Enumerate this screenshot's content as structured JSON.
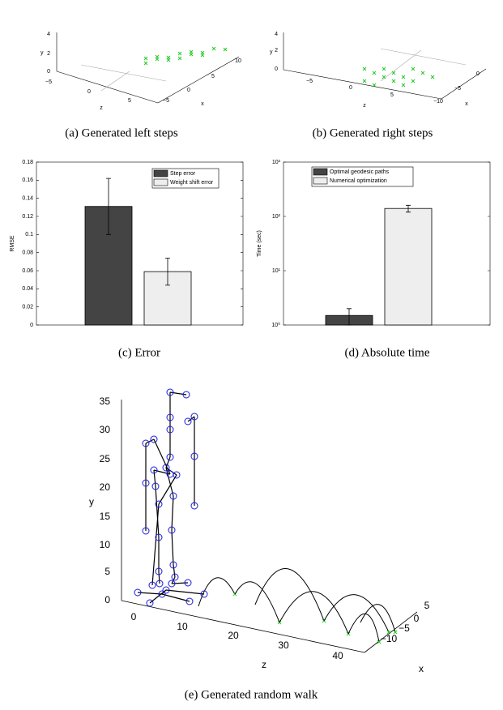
{
  "figures_3d": [
    {
      "caption": "(a) Generated left steps",
      "y_label": "y",
      "z_label": "z",
      "x_label": "x",
      "yticks": [
        "4",
        "2",
        "0"
      ],
      "zticks": [
        "−5",
        "0",
        "5"
      ],
      "xticks": [
        "10",
        "5",
        "0",
        "−5"
      ]
    },
    {
      "caption": "(b) Generated right steps",
      "y_label": "y",
      "z_label": "z",
      "x_label": "x",
      "yticks": [
        "4",
        "2",
        "0"
      ],
      "zticks": [
        "−5",
        "0",
        "5"
      ],
      "xticks": [
        "0",
        "−5",
        "−10"
      ]
    },
    {
      "caption": "(e) Generated random walk",
      "y_label": "y",
      "z_label": "z",
      "x_label": "x",
      "yticks": [
        "35",
        "30",
        "25",
        "20",
        "15",
        "10",
        "5",
        "0"
      ],
      "zticks": [
        "0",
        "10",
        "20",
        "30",
        "40"
      ],
      "xticks": [
        "5",
        "0",
        "−5",
        "−10"
      ]
    }
  ],
  "chart_data": [
    {
      "type": "bar",
      "caption": "(c) Error",
      "y_label": "RMSE",
      "log_scale": false,
      "ylim": [
        0,
        0.18
      ],
      "yticks": [
        0,
        0.02,
        0.04,
        0.06,
        0.08,
        0.1,
        0.12,
        0.14,
        0.16,
        0.18
      ],
      "legend": "upper right",
      "series": [
        {
          "name": "Step error",
          "color": "#444444",
          "values": [
            0.131
          ],
          "errors": [
            0.031
          ]
        },
        {
          "name": "Weight shift error",
          "color": "#eeeeee",
          "values": [
            0.059
          ],
          "errors": [
            0.015
          ]
        }
      ]
    },
    {
      "type": "bar",
      "caption": "(d) Absolute time",
      "y_label": "Time (sec)",
      "log_scale": true,
      "ylim": [
        1,
        1000
      ],
      "yticks": [
        {
          "value": 1,
          "label": "10⁰"
        },
        {
          "value": 10,
          "label": "10¹"
        },
        {
          "value": 100,
          "label": "10²"
        },
        {
          "value": 1000,
          "label": "10³"
        }
      ],
      "legend": "upper left",
      "series": [
        {
          "name": "Optimal geodesic paths",
          "color": "#444444",
          "values": [
            1.5
          ],
          "errors": [
            0.5
          ]
        },
        {
          "name": "Numerical optimization",
          "color": "#eeeeee",
          "values": [
            140
          ],
          "errors": [
            20
          ]
        }
      ]
    }
  ]
}
